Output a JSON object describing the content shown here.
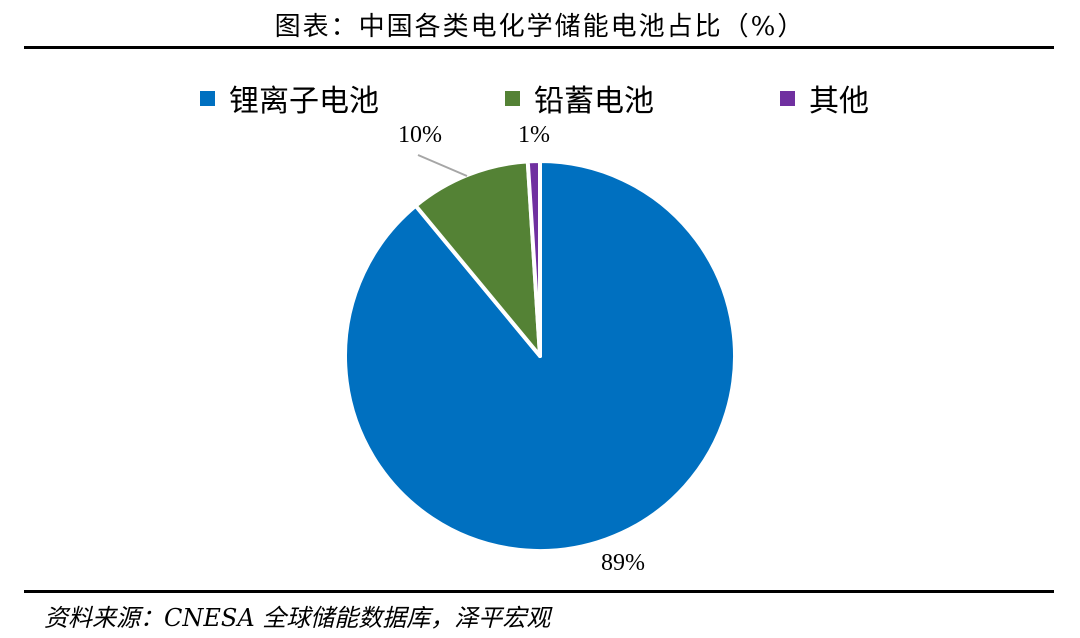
{
  "title": "图表：中国各类电化学储能电池占比（%）",
  "source": "资料来源：CNESA 全球储能数据库，泽平宏观",
  "chart_data": {
    "type": "pie",
    "title": "图表：中国各类电化学储能电池占比（%）",
    "legend_position": "top",
    "categories": [
      "锂离子电池",
      "铅蓄电池",
      "其他"
    ],
    "values": [
      89,
      10,
      1
    ],
    "labels": [
      "89%",
      "10%",
      "1%"
    ],
    "colors": [
      "#0070C0",
      "#548235",
      "#7030A0"
    ]
  }
}
